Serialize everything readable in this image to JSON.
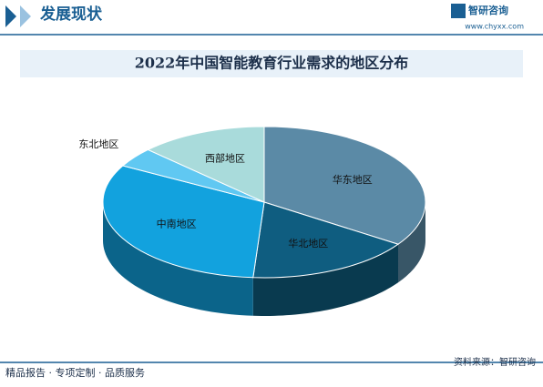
{
  "header": {
    "section": "发展现状",
    "brand": "智研咨询",
    "url": "www.chyxx.com"
  },
  "chart_data": {
    "type": "pie",
    "title": "2022年中国智能教育行业需求的地区分布",
    "categories": [
      "华东地区",
      "华北地区",
      "中南地区",
      "东北地区",
      "西部地区"
    ],
    "values": [
      34.4,
      16.7,
      31.9,
      4.2,
      12.8
    ],
    "colors": [
      "#5b8aa6",
      "#0f5d80",
      "#12a2de",
      "#60c8f2",
      "#a9dbdb"
    ]
  },
  "footer": {
    "left": "精品报告 · 专项定制 · 品质服务",
    "source": "资料来源：智研咨询"
  }
}
